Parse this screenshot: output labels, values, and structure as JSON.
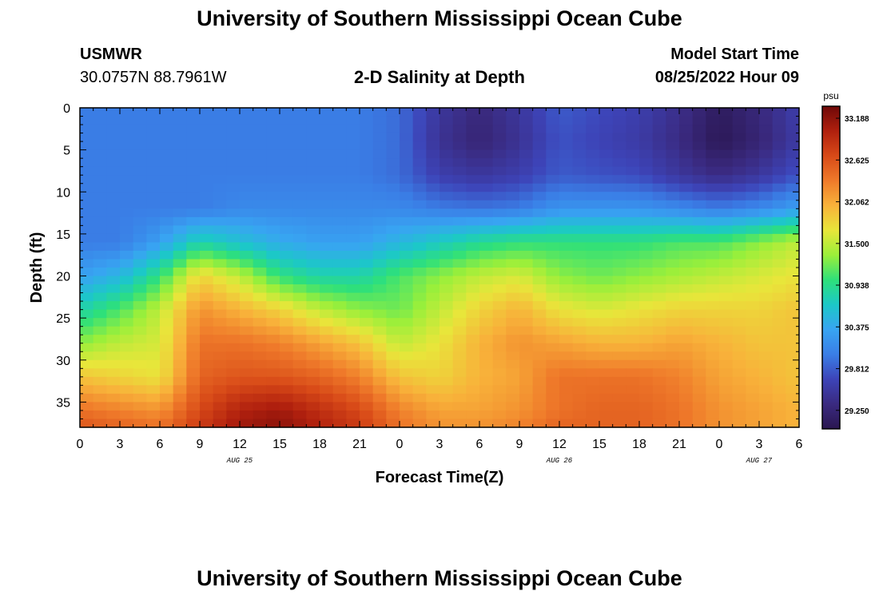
{
  "page": {
    "title": "University of Southern Mississippi Ocean Cube",
    "station_code": "USMWR",
    "station_coords": "30.0757N  88.7961W",
    "plot_title": "2-D Salinity at Depth",
    "model_start_label": "Model Start Time",
    "model_start_value": "08/25/2022 Hour 09",
    "footer_title": "University of Southern Mississippi Ocean Cube"
  },
  "colors": {
    "colormap": [
      "#2a1650",
      "#3a2a80",
      "#3d44b8",
      "#3a7ee6",
      "#38a4f2",
      "#1cc8c8",
      "#2ee07a",
      "#9bef3a",
      "#e8e63a",
      "#f8b23a",
      "#ef7a2a",
      "#d84a18",
      "#b0200e",
      "#6e0808"
    ]
  },
  "chart_data": {
    "type": "heatmap",
    "xlabel": "Forecast Time(Z)",
    "ylabel": "Depth (ft)",
    "x_hours_range": [
      0,
      54
    ],
    "x_tick_step_hours": 3,
    "x_tick_labels": [
      "0",
      "3",
      "6",
      "9",
      "12",
      "15",
      "18",
      "21",
      "0",
      "3",
      "6",
      "9",
      "12",
      "15",
      "18",
      "21",
      "0",
      "3",
      "6"
    ],
    "date_labels": [
      {
        "label": "AUG 25",
        "hour": 12
      },
      {
        "label": "AUG 26",
        "hour": 36
      },
      {
        "label": "AUG 27",
        "hour": 51
      }
    ],
    "ylim": [
      0,
      38
    ],
    "y_ticks": [
      0,
      5,
      10,
      15,
      20,
      25,
      30,
      35
    ],
    "colorbar": {
      "unit": "psu",
      "min": 29.0,
      "max": 33.35,
      "tick_labels": [
        "33.188",
        "32.625",
        "32.062",
        "31.500",
        "30.938",
        "30.375",
        "29.812",
        "29.250"
      ]
    },
    "grid_hours": [
      0,
      3,
      6,
      9,
      12,
      15,
      18,
      21,
      24,
      27,
      30,
      33,
      36,
      39,
      42,
      45,
      48,
      51,
      54
    ],
    "grid_depths": [
      0,
      4,
      8,
      12,
      16,
      20,
      24,
      28,
      32,
      36,
      38
    ],
    "salinity": [
      [
        30.0,
        30.0,
        30.0,
        30.0,
        30.0,
        30.0,
        30.0,
        30.0,
        29.9,
        29.5,
        29.3,
        29.5,
        29.8,
        29.7,
        29.6,
        29.4,
        29.1,
        29.3,
        29.6
      ],
      [
        30.0,
        30.0,
        30.0,
        30.0,
        30.0,
        30.0,
        30.0,
        30.0,
        29.9,
        29.45,
        29.25,
        29.45,
        29.75,
        29.65,
        29.55,
        29.35,
        29.05,
        29.25,
        29.55
      ],
      [
        30.0,
        30.0,
        30.0,
        30.0,
        30.0,
        30.0,
        30.0,
        30.0,
        29.9,
        29.6,
        29.5,
        29.6,
        29.8,
        29.75,
        29.7,
        29.5,
        29.35,
        29.5,
        29.75
      ],
      [
        30.0,
        30.0,
        30.0,
        30.0,
        30.1,
        30.1,
        30.1,
        30.1,
        30.1,
        30.0,
        29.95,
        30.0,
        30.2,
        30.2,
        30.2,
        30.1,
        30.0,
        30.1,
        30.3
      ],
      [
        30.0,
        30.0,
        30.3,
        30.8,
        30.6,
        30.4,
        30.3,
        30.3,
        30.5,
        30.7,
        30.9,
        31.0,
        31.0,
        31.0,
        31.0,
        31.1,
        31.1,
        31.3,
        31.5
      ],
      [
        30.3,
        30.5,
        31.0,
        31.8,
        31.5,
        31.0,
        30.8,
        30.8,
        31.1,
        31.3,
        31.5,
        31.6,
        31.3,
        31.2,
        31.3,
        31.4,
        31.5,
        31.6,
        31.7
      ],
      [
        30.8,
        31.1,
        31.5,
        32.2,
        32.0,
        31.8,
        31.5,
        31.3,
        31.2,
        31.5,
        31.8,
        32.0,
        31.7,
        31.6,
        31.7,
        31.8,
        31.8,
        31.8,
        31.9
      ],
      [
        31.3,
        31.5,
        31.6,
        32.4,
        32.4,
        32.3,
        32.1,
        31.9,
        31.5,
        31.7,
        32.0,
        32.2,
        32.1,
        32.0,
        32.0,
        32.1,
        32.0,
        31.9,
        31.9
      ],
      [
        31.9,
        31.8,
        31.7,
        32.5,
        32.6,
        32.6,
        32.5,
        32.3,
        31.9,
        31.8,
        32.0,
        32.1,
        32.4,
        32.4,
        32.4,
        32.3,
        32.1,
        32.0,
        31.9
      ],
      [
        32.4,
        32.3,
        32.2,
        32.7,
        33.0,
        33.1,
        32.9,
        32.7,
        32.3,
        32.1,
        32.1,
        32.2,
        32.4,
        32.5,
        32.5,
        32.4,
        32.2,
        32.1,
        32.0
      ],
      [
        32.6,
        32.5,
        32.4,
        32.8,
        33.1,
        33.2,
        33.0,
        32.8,
        32.4,
        32.2,
        32.2,
        32.3,
        32.5,
        32.5,
        32.5,
        32.4,
        32.2,
        32.1,
        32.0
      ]
    ]
  }
}
